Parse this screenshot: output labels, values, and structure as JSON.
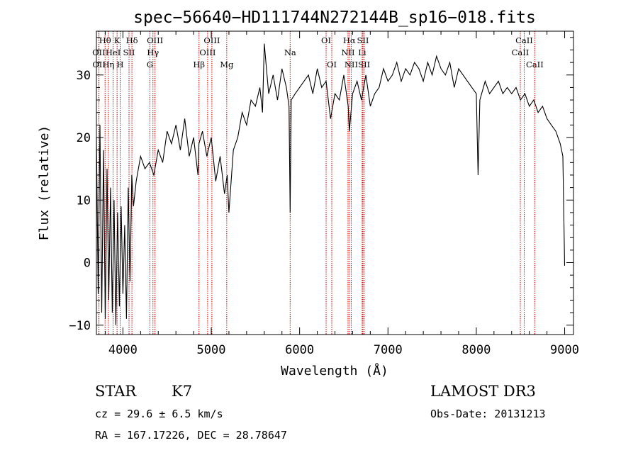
{
  "chart_data": {
    "type": "line",
    "title": "spec−56640−HD111744N272144B_sp16−018.fits",
    "xlabel": "Wavelength (Å)",
    "ylabel": "Flux (relative)",
    "xlim": [
      3700,
      9100
    ],
    "ylim": [
      -11.5,
      37
    ],
    "x_ticks": [
      4000,
      5000,
      6000,
      7000,
      8000,
      9000
    ],
    "y_ticks": [
      -10,
      0,
      10,
      20,
      30
    ],
    "series": [
      {
        "name": "flux",
        "x": [
          3700,
          3720,
          3740,
          3760,
          3780,
          3800,
          3820,
          3840,
          3860,
          3880,
          3900,
          3920,
          3940,
          3960,
          3980,
          4000,
          4020,
          4040,
          4060,
          4080,
          4100,
          4120,
          4150,
          4200,
          4250,
          4300,
          4350,
          4400,
          4450,
          4500,
          4550,
          4600,
          4650,
          4700,
          4750,
          4800,
          4850,
          4860,
          4900,
          4950,
          5000,
          5050,
          5100,
          5150,
          5180,
          5200,
          5250,
          5300,
          5350,
          5400,
          5450,
          5500,
          5550,
          5580,
          5600,
          5650,
          5700,
          5750,
          5800,
          5850,
          5880,
          5893,
          5905,
          5950,
          6000,
          6050,
          6100,
          6150,
          6200,
          6250,
          6300,
          6350,
          6400,
          6450,
          6500,
          6550,
          6563,
          6600,
          6650,
          6700,
          6750,
          6800,
          6850,
          6900,
          6950,
          7000,
          7050,
          7100,
          7150,
          7200,
          7250,
          7300,
          7350,
          7400,
          7450,
          7500,
          7550,
          7600,
          7650,
          7700,
          7750,
          7800,
          7850,
          7900,
          7950,
          8000,
          8020,
          8040,
          8100,
          8150,
          8200,
          8250,
          8300,
          8350,
          8400,
          8450,
          8500,
          8550,
          8600,
          8650,
          8700,
          8750,
          8800,
          8850,
          8900,
          8950,
          8980,
          9000
        ],
        "y": [
          20,
          -5,
          22,
          -8,
          18,
          -9,
          15,
          -6,
          12,
          -8,
          10,
          -10,
          8,
          -7,
          9,
          -5,
          6,
          -9,
          12,
          -3,
          14,
          9,
          13,
          17,
          15,
          16,
          14,
          18,
          16,
          21,
          19,
          22,
          18,
          23,
          17,
          20,
          14,
          19,
          21,
          17,
          20,
          13,
          17,
          11,
          14,
          8,
          18,
          20,
          24,
          22,
          26,
          25,
          28,
          24,
          35,
          27,
          30,
          26,
          31,
          28,
          25,
          8,
          26,
          27,
          28,
          29,
          30,
          27,
          31,
          28,
          29,
          23,
          27,
          26,
          30,
          25,
          21,
          27,
          29,
          26,
          30,
          25,
          27,
          28,
          31,
          29,
          30,
          32,
          29,
          31,
          30,
          32,
          31,
          29,
          32,
          30,
          33,
          31,
          30,
          32,
          28,
          31,
          30,
          29,
          28,
          27,
          14,
          26,
          29,
          27,
          28,
          29,
          27,
          28,
          27,
          28,
          26,
          27,
          25,
          26,
          24,
          25,
          23,
          22,
          21,
          19,
          17,
          -0.5
        ]
      }
    ],
    "spectral_lines": [
      {
        "label": "Hθ",
        "wavelength": 3798,
        "row": 1
      },
      {
        "label": "OII",
        "wavelength": 3727,
        "row": 2
      },
      {
        "label": "OII",
        "wavelength": 3729,
        "row": 3
      },
      {
        "label": "Hη",
        "wavelength": 3835,
        "row": 3
      },
      {
        "label": "K",
        "wavelength": 3934,
        "row": 1
      },
      {
        "label": "HeI",
        "wavelength": 3889,
        "row": 2
      },
      {
        "label": "H",
        "wavelength": 3969,
        "row": 3
      },
      {
        "label": "Hδ",
        "wavelength": 4102,
        "row": 1
      },
      {
        "label": "SII",
        "wavelength": 4069,
        "row": 2
      },
      {
        "label": "OIII",
        "wavelength": 4363,
        "row": 1
      },
      {
        "label": "Hγ",
        "wavelength": 4340,
        "row": 2
      },
      {
        "label": "G",
        "wavelength": 4305,
        "row": 3
      },
      {
        "label": "OIII",
        "wavelength": 5007,
        "row": 1
      },
      {
        "label": "OIII",
        "wavelength": 4959,
        "row": 2
      },
      {
        "label": "Hβ",
        "wavelength": 4861,
        "row": 3
      },
      {
        "label": "Mg",
        "wavelength": 5175,
        "row": 3
      },
      {
        "label": "Na",
        "wavelength": 5893,
        "row": 2
      },
      {
        "label": "OI",
        "wavelength": 6300,
        "row": 1
      },
      {
        "label": "OI",
        "wavelength": 6364,
        "row": 3
      },
      {
        "label": "Hα",
        "wavelength": 6563,
        "row": 1
      },
      {
        "label": "NII",
        "wavelength": 6548,
        "row": 2
      },
      {
        "label": "NII",
        "wavelength": 6584,
        "row": 3
      },
      {
        "label": "SII",
        "wavelength": 6717,
        "row": 1
      },
      {
        "label": "Li",
        "wavelength": 6708,
        "row": 2
      },
      {
        "label": "SII",
        "wavelength": 6731,
        "row": 3
      },
      {
        "label": "CaII",
        "wavelength": 8542,
        "row": 1
      },
      {
        "label": "CaII",
        "wavelength": 8498,
        "row": 2
      },
      {
        "label": "CaII",
        "wavelength": 8662,
        "row": 3
      }
    ]
  },
  "info": {
    "class_label": "STAR",
    "subclass": "K7",
    "survey": "LAMOST DR3",
    "cz_line": "cz = 29.6 ± 6.5 km/s",
    "obs_date_line": "Obs-Date: 20131213",
    "coords_line": "RA = 167.17226, DEC =  28.78647"
  },
  "colors": {
    "line_marker": "#cc0000",
    "spectrum": "#000000",
    "background": "#ffffff"
  }
}
